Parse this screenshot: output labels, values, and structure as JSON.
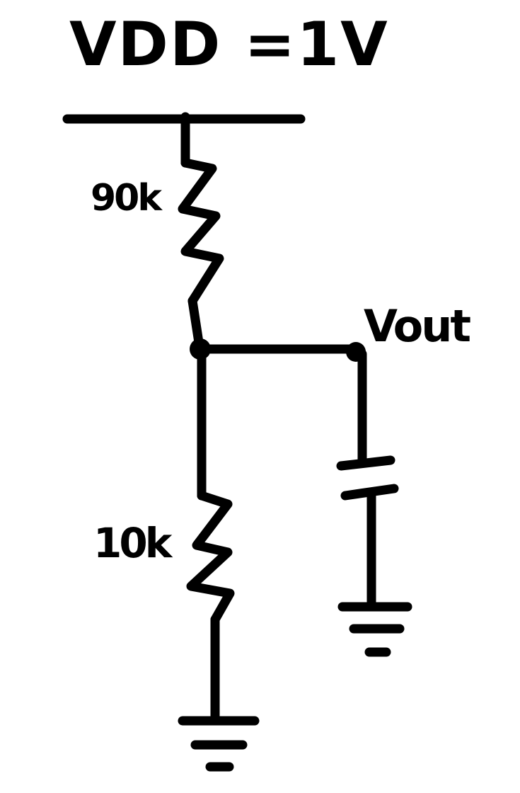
{
  "supply": {
    "label": "VDD =1V"
  },
  "resistors": {
    "top": {
      "label": "90k"
    },
    "bottom": {
      "label": "10k"
    }
  },
  "output": {
    "label": "Vout"
  },
  "style": {
    "ink_color": "#000000",
    "background_color": "#ffffff"
  }
}
